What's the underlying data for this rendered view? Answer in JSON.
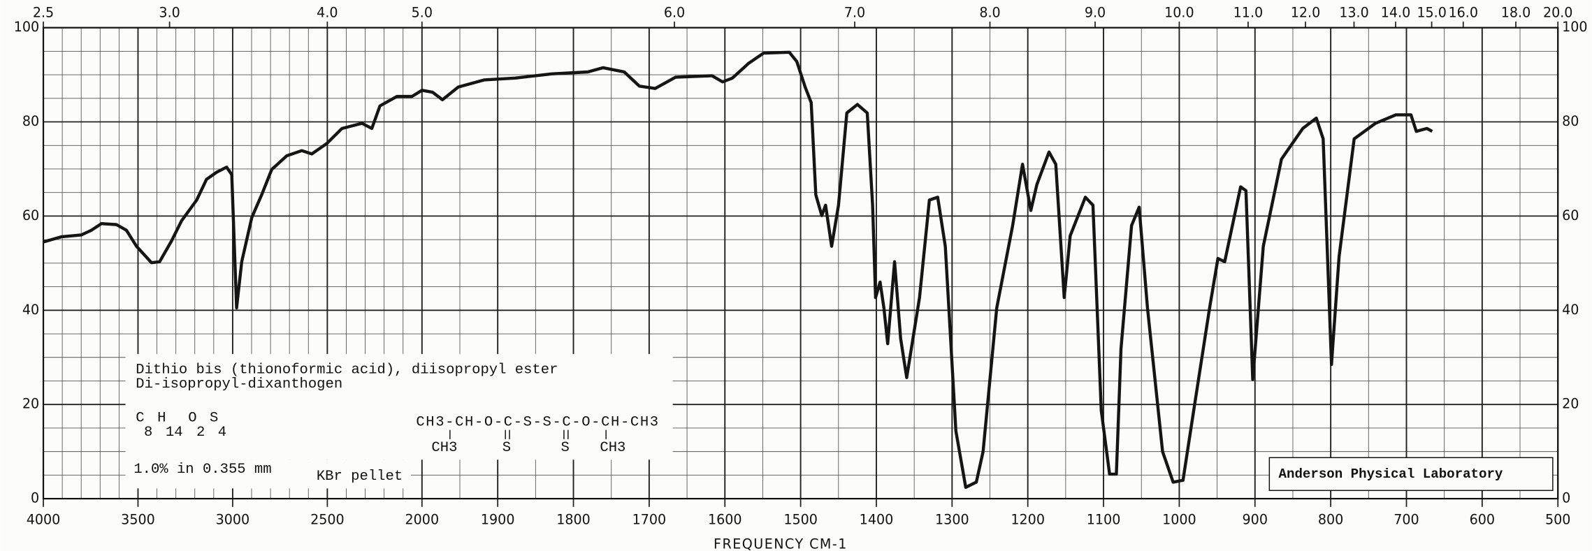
{
  "chart_data": {
    "type": "line",
    "x_label": "FREQUENCY CM-1",
    "x": [
      4000,
      3905,
      3800,
      3746,
      3693,
      3614,
      3561,
      3508,
      3429,
      3386,
      3323,
      3270,
      3190,
      3138,
      3085,
      3032,
      3005,
      2979,
      2952,
      2899,
      2847,
      2794,
      2714,
      2635,
      2582,
      2503,
      2423,
      2317,
      2265,
      2222,
      2132,
      2053,
      2000,
      1986,
      1973,
      1952,
      1918,
      1877,
      1829,
      1781,
      1761,
      1733,
      1713,
      1692,
      1665,
      1617,
      1603,
      1590,
      1569,
      1549,
      1515,
      1505,
      1494,
      1486,
      1480,
      1472,
      1467,
      1459,
      1450,
      1439,
      1425,
      1412,
      1405,
      1401,
      1395,
      1390,
      1385,
      1376,
      1368,
      1360,
      1343,
      1330,
      1319,
      1309,
      1295,
      1282,
      1268,
      1259,
      1241,
      1220,
      1207,
      1196,
      1188,
      1172,
      1163,
      1152,
      1144,
      1124,
      1114,
      1103,
      1092,
      1083,
      1077,
      1063,
      1053,
      1042,
      1022,
      1008,
      995,
      981,
      960,
      949,
      940,
      919,
      912,
      903,
      889,
      865,
      837,
      819,
      810,
      799,
      789,
      769,
      741,
      714,
      694,
      687,
      673,
      666
    ],
    "series": [
      {
        "color": "#151515",
        "values": [
          54.5,
          55.6,
          56,
          57,
          58.4,
          58.2,
          57,
          53.6,
          50.1,
          50.3,
          54.7,
          59,
          63.4,
          67.8,
          69.3,
          70.4,
          68.8,
          40.5,
          50.3,
          59.7,
          64.5,
          69.9,
          72.8,
          73.9,
          73.2,
          75.4,
          78.6,
          79.7,
          78.6,
          83.4,
          85.4,
          85.4,
          86.7,
          86.3,
          84.7,
          87.4,
          88.9,
          89.3,
          90.2,
          90.6,
          91.5,
          90.6,
          87.6,
          87.1,
          89.5,
          89.8,
          88.5,
          89.3,
          92.4,
          94.6,
          94.8,
          92.8,
          87.4,
          84.1,
          64.5,
          60.1,
          62.3,
          53.6,
          62.3,
          81.9,
          83.7,
          81.9,
          62.3,
          42.7,
          46,
          40.5,
          32.9,
          50.3,
          34,
          25.7,
          42.7,
          63.4,
          64,
          53.6,
          14.4,
          2.4,
          3.5,
          10,
          40.5,
          58,
          71,
          61.2,
          66.7,
          73.6,
          71,
          42.7,
          55.8,
          64,
          62.3,
          18.7,
          5.2,
          5.2,
          31.8,
          58,
          61.9,
          40.5,
          10,
          3.5,
          3.9,
          18.7,
          40.5,
          51,
          50.3,
          66.2,
          65.4,
          25.3,
          53.6,
          72.1,
          78.6,
          80.8,
          76.4,
          28.5,
          51.4,
          76.4,
          79.7,
          81.5,
          81.5,
          78,
          78.6,
          78
        ]
      }
    ],
    "xlim": [
      4000,
      500
    ],
    "xbreak": 2000,
    "xticks": [
      4000,
      3500,
      3000,
      2500,
      2000,
      1900,
      1800,
      1700,
      1600,
      1500,
      1400,
      1300,
      1200,
      1100,
      1000,
      900,
      800,
      700,
      600,
      500
    ],
    "xminor": [
      3900,
      3800,
      3700,
      3600,
      3400,
      3300,
      3200,
      3100,
      2900,
      2800,
      2700,
      2600,
      2400,
      2300,
      2200,
      2100,
      1950,
      1850,
      1750,
      1650,
      1550,
      1450,
      1350,
      1250,
      1150,
      1050,
      950,
      850,
      750,
      650,
      550
    ],
    "x2ticks": [
      2.5,
      {
        "value": 3,
        "label": "3.0"
      },
      {
        "value": 4,
        "label": "4.0"
      },
      {
        "value": 5,
        "label": "5.0"
      },
      {
        "value": 6,
        "label": "6.0"
      },
      {
        "value": 7,
        "label": "7.0"
      },
      {
        "value": 8,
        "label": "8.0"
      },
      {
        "value": 9,
        "label": "9.0"
      },
      {
        "value": 10,
        "label": "10.0"
      },
      {
        "value": 11,
        "label": "11.0"
      },
      {
        "value": 12,
        "label": "12.0"
      },
      {
        "value": 13,
        "label": "13.0"
      },
      {
        "value": 14,
        "label": "14.0"
      },
      {
        "value": 15,
        "label": "15.0"
      },
      {
        "value": 16,
        "label": "16.0"
      },
      {
        "value": 18,
        "label": "18.0"
      },
      {
        "value": 20,
        "label": "20.0"
      }
    ],
    "ylim": [
      0,
      100
    ],
    "yticks": [
      0,
      20,
      40,
      60,
      80,
      100
    ],
    "yminor": [
      5,
      10,
      15,
      25,
      30,
      35,
      45,
      50,
      55,
      65,
      70,
      75,
      85,
      90,
      95
    ],
    "grid": true,
    "annotations": {
      "name": "Dithio bis (thionoformic acid), diisopropyl ester",
      "synonym": "Di-isopropyl-dixanthogen",
      "formula": [
        [
          "C",
          "8"
        ],
        [
          "H",
          "14"
        ],
        [
          "O",
          "2"
        ],
        [
          "S",
          "4"
        ]
      ],
      "structure": "CH3-CH-O-C-S-S-C-O-CH-CH3",
      "branches": [
        "CH3",
        "S",
        "S",
        "CH3"
      ],
      "concentration": "1.0% in 0.355 mm",
      "medium": "KBr pellet",
      "lab": "Anderson Physical Laboratory"
    }
  }
}
